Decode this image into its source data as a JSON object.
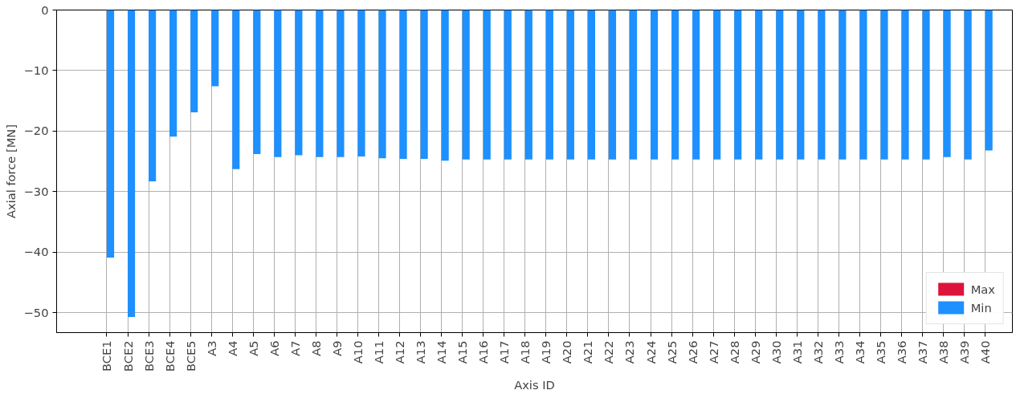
{
  "chart_data": {
    "type": "bar",
    "xlabel": "Axis ID",
    "ylabel": "Axial force [MN]",
    "categories": [
      "BCE1",
      "BCE2",
      "BCE3",
      "BCE4",
      "BCE5",
      "A3",
      "A4",
      "A5",
      "A6",
      "A7",
      "A8",
      "A9",
      "A10",
      "A11",
      "A12",
      "A13",
      "A14",
      "A15",
      "A16",
      "A17",
      "A18",
      "A19",
      "A20",
      "A21",
      "A22",
      "A23",
      "A24",
      "A25",
      "A26",
      "A27",
      "A28",
      "A29",
      "A30",
      "A31",
      "A32",
      "A33",
      "A34",
      "A35",
      "A36",
      "A37",
      "A38",
      "A39",
      "A40"
    ],
    "series": [
      {
        "name": "Max",
        "color": "#dc143c",
        "values": [
          0,
          0,
          0,
          0,
          0,
          0,
          0,
          0,
          0,
          0,
          0,
          0,
          0,
          0,
          0,
          0,
          0,
          0,
          0,
          0,
          0,
          0,
          0,
          0,
          0,
          0,
          0,
          0,
          0,
          0,
          0,
          0,
          0,
          0,
          0,
          0,
          0,
          0,
          0,
          0,
          0,
          0,
          0
        ]
      },
      {
        "name": "Min",
        "color": "#1e90ff",
        "values": [
          -40.9,
          -50.7,
          -28.3,
          -20.9,
          -16.9,
          -12.6,
          -26.3,
          -23.8,
          -24.3,
          -24.0,
          -24.3,
          -24.3,
          -24.2,
          -24.5,
          -24.6,
          -24.6,
          -24.9,
          -24.7,
          -24.7,
          -24.7,
          -24.7,
          -24.7,
          -24.7,
          -24.7,
          -24.7,
          -24.7,
          -24.7,
          -24.7,
          -24.7,
          -24.7,
          -24.7,
          -24.7,
          -24.7,
          -24.7,
          -24.7,
          -24.7,
          -24.7,
          -24.7,
          -24.7,
          -24.7,
          -24.3,
          -24.7,
          -23.2
        ]
      }
    ],
    "ylim": [
      -53.3,
      0
    ],
    "yticks": [
      -50,
      -40,
      -30,
      -20,
      -10,
      0
    ],
    "grid": true,
    "legend": "bottom right"
  }
}
